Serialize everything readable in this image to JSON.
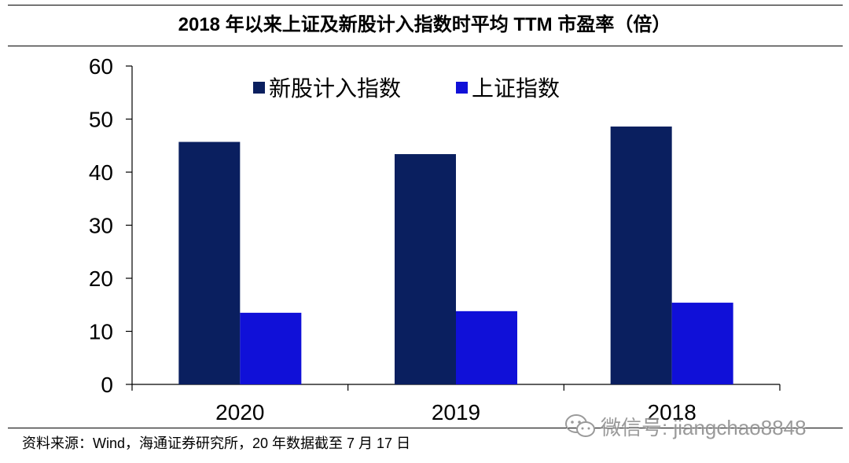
{
  "title": "2018 年以来上证及新股计入指数时平均 TTM 市盈率（倍）",
  "source": "资料来源：Wind，海通证券研究所，20 年数据截至 7 月 17 日",
  "watermark": {
    "icon": "wechat-icon",
    "text": "微信号: jiangchao8848"
  },
  "chart_data": {
    "type": "bar",
    "title": "2018 年以来上证及新股计入指数时平均 TTM 市盈率（倍）",
    "categories": [
      "2020",
      "2019",
      "2018"
    ],
    "series": [
      {
        "name": "新股计入指数",
        "values": [
          45.7,
          43.4,
          48.6
        ],
        "color": "#0a1f5f"
      },
      {
        "name": "上证指数",
        "values": [
          13.5,
          13.8,
          15.4
        ],
        "color": "#1010d8"
      }
    ],
    "ylim": [
      0,
      60
    ],
    "yticks": [
      "0",
      "10",
      "20",
      "30",
      "40",
      "50",
      "60"
    ],
    "grid": false,
    "legend": "top-center",
    "xlabel": "",
    "ylabel": ""
  }
}
